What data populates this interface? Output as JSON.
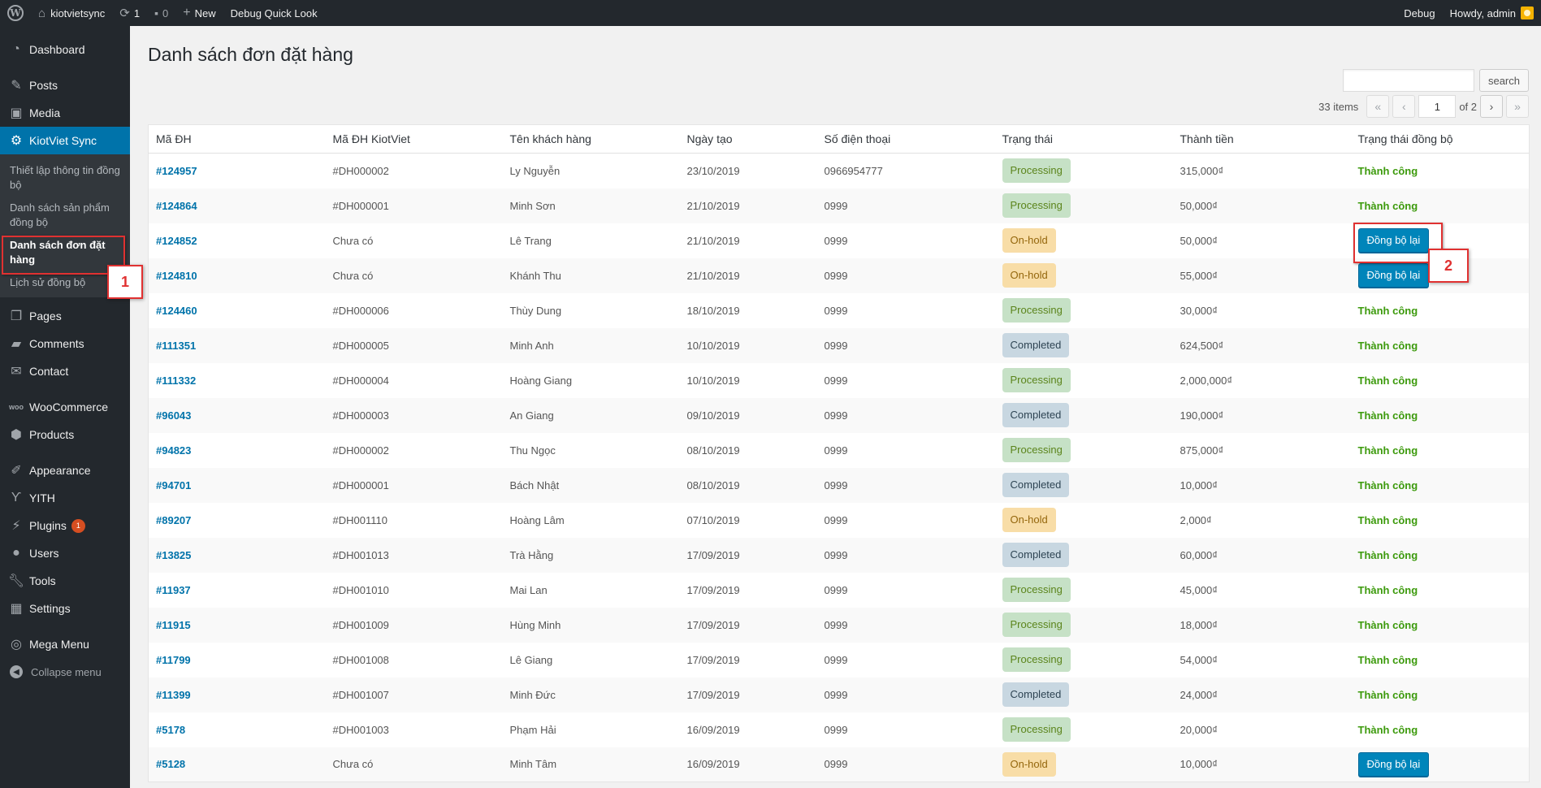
{
  "adminbar": {
    "site_name": "kiotvietsync",
    "updates_count": "1",
    "comments_count": "0",
    "new_label": "New",
    "debug_quick_look": "Debug Quick Look",
    "debug_label": "Debug",
    "howdy": "Howdy, admin"
  },
  "sidebar": {
    "dashboard": "Dashboard",
    "posts": "Posts",
    "media": "Media",
    "kiotviet": "KiotViet Sync",
    "sub1": "Thiết lập thông tin đồng bộ",
    "sub2": "Danh sách sản phẩm đồng bộ",
    "sub3": "Danh sách đơn đặt hàng",
    "sub4": "Lịch sử đồng bộ",
    "pages": "Pages",
    "comments": "Comments",
    "contact": "Contact",
    "woocommerce": "WooCommerce",
    "products": "Products",
    "appearance": "Appearance",
    "yith": "YITH",
    "plugins": "Plugins",
    "plugins_badge": "1",
    "users": "Users",
    "tools": "Tools",
    "settings": "Settings",
    "megamenu": "Mega Menu",
    "collapse": "Collapse menu"
  },
  "annotations": {
    "one": "1",
    "two": "2"
  },
  "page": {
    "title": "Danh sách đơn đặt hàng",
    "search_button": "search",
    "items_count": "33 items",
    "current_page": "1",
    "of_pages": "of 2"
  },
  "table": {
    "headers": [
      "Mã ĐH",
      "Mã ĐH KiotViet",
      "Tên khách hàng",
      "Ngày tạo",
      "Số điện thoại",
      "Trạng thái",
      "Thành tiền",
      "Trạng thái đồng bộ"
    ],
    "rows": [
      {
        "id": "#124957",
        "kv": "#DH000002",
        "name": "Ly Nguyễn",
        "date": "23/10/2019",
        "phone": "0966954777",
        "status": "Processing",
        "total": "315,000₫",
        "sync": "Thành công"
      },
      {
        "id": "#124864",
        "kv": "#DH000001",
        "name": "Minh Sơn",
        "date": "21/10/2019",
        "phone": "0999",
        "status": "Processing",
        "total": "50,000₫",
        "sync": "Thành công"
      },
      {
        "id": "#124852",
        "kv": "Chưa có",
        "name": "Lê Trang",
        "date": "21/10/2019",
        "phone": "0999",
        "status": "On-hold",
        "total": "50,000₫",
        "sync": "Đồng bộ lại"
      },
      {
        "id": "#124810",
        "kv": "Chưa có",
        "name": "Khánh Thu",
        "date": "21/10/2019",
        "phone": "0999",
        "status": "On-hold",
        "total": "55,000₫",
        "sync": "Đồng bộ lại"
      },
      {
        "id": "#124460",
        "kv": "#DH000006",
        "name": "Thùy Dung",
        "date": "18/10/2019",
        "phone": "0999",
        "status": "Processing",
        "total": "30,000₫",
        "sync": "Thành công"
      },
      {
        "id": "#111351",
        "kv": "#DH000005",
        "name": "Minh Anh",
        "date": "10/10/2019",
        "phone": "0999",
        "status": "Completed",
        "total": "624,500₫",
        "sync": "Thành công"
      },
      {
        "id": "#111332",
        "kv": "#DH000004",
        "name": "Hoàng Giang",
        "date": "10/10/2019",
        "phone": "0999",
        "status": "Processing",
        "total": "2,000,000₫",
        "sync": "Thành công"
      },
      {
        "id": "#96043",
        "kv": "#DH000003",
        "name": "An Giang",
        "date": "09/10/2019",
        "phone": "0999",
        "status": "Completed",
        "total": "190,000₫",
        "sync": "Thành công"
      },
      {
        "id": "#94823",
        "kv": "#DH000002",
        "name": "Thu Ngọc",
        "date": "08/10/2019",
        "phone": "0999",
        "status": "Processing",
        "total": "875,000₫",
        "sync": "Thành công"
      },
      {
        "id": "#94701",
        "kv": "#DH000001",
        "name": "Bách Nhật",
        "date": "08/10/2019",
        "phone": "0999",
        "status": "Completed",
        "total": "10,000₫",
        "sync": "Thành công"
      },
      {
        "id": "#89207",
        "kv": "#DH001110",
        "name": "Hoàng Lâm",
        "date": "07/10/2019",
        "phone": "0999",
        "status": "On-hold",
        "total": "2,000₫",
        "sync": "Thành công"
      },
      {
        "id": "#13825",
        "kv": "#DH001013",
        "name": "Trà Hằng",
        "date": "17/09/2019",
        "phone": "0999",
        "status": "Completed",
        "total": "60,000₫",
        "sync": "Thành công"
      },
      {
        "id": "#11937",
        "kv": "#DH001010",
        "name": "Mai Lan",
        "date": "17/09/2019",
        "phone": "0999",
        "status": "Processing",
        "total": "45,000₫",
        "sync": "Thành công"
      },
      {
        "id": "#11915",
        "kv": "#DH001009",
        "name": "Hùng Minh",
        "date": "17/09/2019",
        "phone": "0999",
        "status": "Processing",
        "total": "18,000₫",
        "sync": "Thành công"
      },
      {
        "id": "#11799",
        "kv": "#DH001008",
        "name": "Lê Giang",
        "date": "17/09/2019",
        "phone": "0999",
        "status": "Processing",
        "total": "54,000₫",
        "sync": "Thành công"
      },
      {
        "id": "#11399",
        "kv": "#DH001007",
        "name": "Minh Đức",
        "date": "17/09/2019",
        "phone": "0999",
        "status": "Completed",
        "total": "24,000₫",
        "sync": "Thành công"
      },
      {
        "id": "#5178",
        "kv": "#DH001003",
        "name": "Phạm Hải",
        "date": "16/09/2019",
        "phone": "0999",
        "status": "Processing",
        "total": "20,000₫",
        "sync": "Thành công"
      },
      {
        "id": "#5128",
        "kv": "Chưa có",
        "name": "Minh Tâm",
        "date": "16/09/2019",
        "phone": "0999",
        "status": "On-hold",
        "total": "10,000₫",
        "sync": "Đồng bộ lại"
      }
    ]
  }
}
